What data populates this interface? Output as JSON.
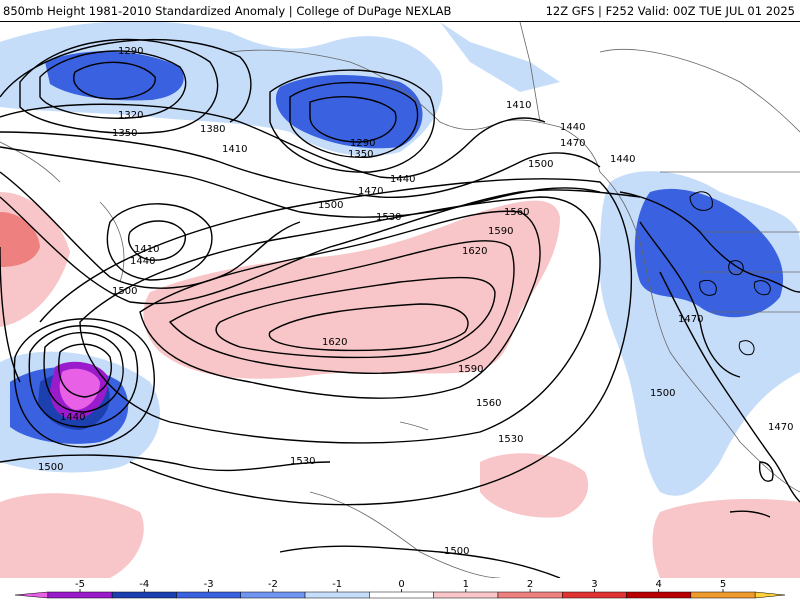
{
  "header": {
    "left": "850mb Height 1981-2010 Standardized Anomaly | College of DuPage NEXLAB",
    "right": "12Z GFS | F252 Valid: 00Z TUE JUL 01 2025"
  },
  "contour_labels": [
    "1290",
    "1320",
    "1350",
    "1290",
    "1350",
    "1380",
    "1410",
    "1410",
    "1440",
    "1470",
    "1440",
    "1410",
    "1440",
    "1470",
    "1500",
    "1500",
    "1530",
    "1560",
    "1590",
    "1620",
    "1620",
    "1590",
    "1560",
    "1530",
    "1530",
    "1500",
    "1440",
    "1500",
    "1440",
    "1470",
    "1500",
    "1470",
    "1500"
  ],
  "legend": {
    "ticks": [
      "-5",
      "-4",
      "-3",
      "-2",
      "-1",
      "0",
      "1",
      "2",
      "3",
      "4",
      "5"
    ],
    "colors": [
      "#e860e6",
      "#9a1bcc",
      "#1d40b0",
      "#3a62e0",
      "#6f95f0",
      "#c6ddfa",
      "#ffffff",
      "#f8c6c8",
      "#ef8080",
      "#e03434",
      "#b80000",
      "#ef9a2c",
      "#ffd23a"
    ]
  }
}
